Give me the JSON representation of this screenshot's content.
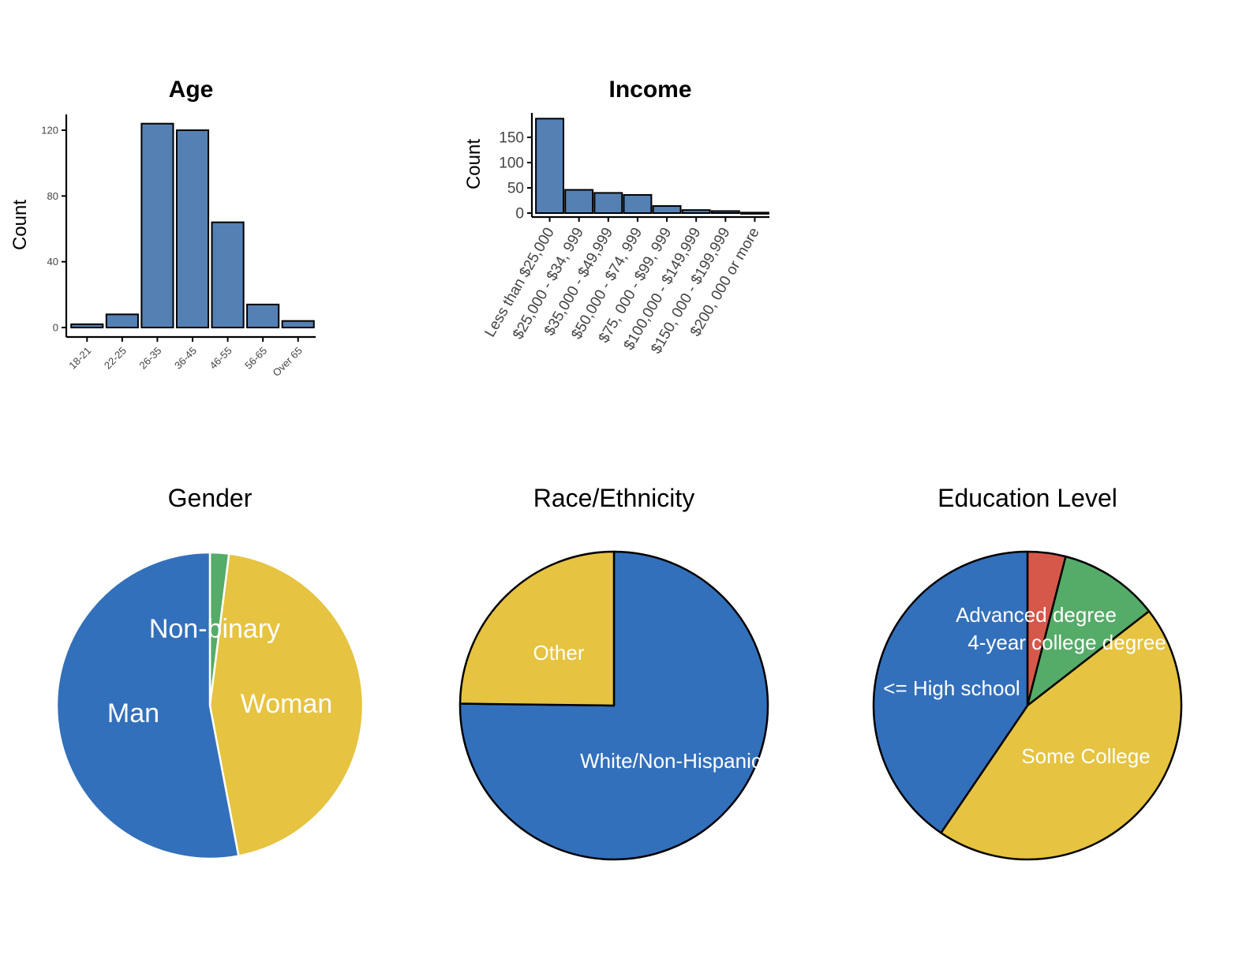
{
  "colors": {
    "bar_fill": "#5580B4",
    "bar_stroke": "#000000",
    "blue": "#3370BB",
    "yellow": "#E6C340",
    "green": "#55AB68",
    "red": "#D6584A",
    "label_white": "#FFFFFF"
  },
  "chart_data": [
    {
      "id": "age",
      "type": "bar",
      "title": "Age",
      "ylabel": "Count",
      "xlabel": "",
      "categories": [
        "18-21",
        "22-25",
        "26-35",
        "36-45",
        "46-55",
        "56-65",
        "Over 65"
      ],
      "values": [
        2,
        8,
        124,
        120,
        64,
        14,
        4
      ],
      "ylim": [
        0,
        130
      ],
      "yticks": [
        0,
        40,
        80,
        120
      ],
      "grid": false
    },
    {
      "id": "income",
      "type": "bar",
      "title": "Income",
      "ylabel": "Count",
      "xlabel": "",
      "categories": [
        "Less than $25,000",
        "$25,000 - $34, 999",
        "$35,000 - $49,999",
        "$50,000 - $74, 999",
        "$75, 000 - $99, 999",
        "$100,000 - $149,999",
        "$150, 000 - $199,999",
        "$200, 000 or more"
      ],
      "values": [
        187,
        46,
        40,
        36,
        14,
        6,
        4,
        1
      ],
      "ylim": [
        0,
        195
      ],
      "yticks": [
        0,
        50,
        100,
        150
      ],
      "grid": false
    },
    {
      "id": "gender",
      "type": "pie",
      "title": "Gender",
      "slice_stroke": "#FFFFFF",
      "slices": [
        {
          "label": "Non-binary",
          "value": 2,
          "color": "#55AB68"
        },
        {
          "label": "Woman",
          "value": 45,
          "color": "#E6C340"
        },
        {
          "label": "Man",
          "value": 53,
          "color": "#3370BB"
        }
      ]
    },
    {
      "id": "race",
      "type": "pie",
      "title": "Race/Ethnicity",
      "slice_stroke": "#000000",
      "slices": [
        {
          "label": "White/Non-Hispanic",
          "value": 75.2,
          "color": "#3370BB"
        },
        {
          "label": "Other",
          "value": 24.8,
          "color": "#E6C340"
        }
      ]
    },
    {
      "id": "education",
      "type": "pie",
      "title": "Education Level",
      "slice_stroke": "#000000",
      "slices": [
        {
          "label": "Advanced degree",
          "value": 4,
          "color": "#D6584A"
        },
        {
          "label": "4-year college degree",
          "value": 10.5,
          "color": "#55AB68"
        },
        {
          "label": "Some College",
          "value": 45,
          "color": "#E6C340"
        },
        {
          "label": "<= High school",
          "value": 40.5,
          "color": "#3370BB"
        }
      ]
    }
  ]
}
